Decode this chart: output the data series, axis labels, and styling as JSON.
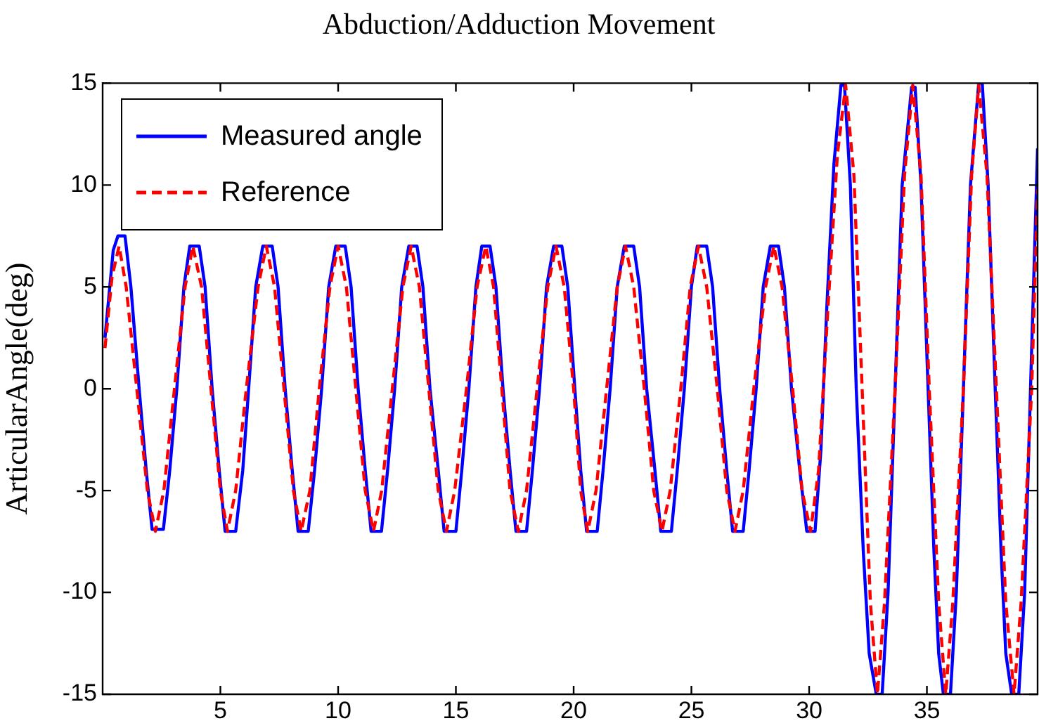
{
  "chart_data": {
    "type": "line",
    "title": "Abduction/Adduction Movement",
    "ylabel": "ArticularAngle(deg)",
    "xlim": [
      0,
      39.7
    ],
    "xticks": [
      5,
      10,
      15,
      20,
      25,
      30,
      35
    ],
    "ylim": [
      -15,
      15
    ],
    "yticks": [
      -15,
      -10,
      -5,
      0,
      5,
      10,
      15
    ],
    "grid": false,
    "legend": "top left",
    "marker": "none",
    "series": [
      {
        "name": "Measured angle",
        "color": "#0000ff",
        "line_style": "solid",
        "x": [
          0.1,
          0.45,
          0.65,
          0.95,
          1.2,
          1.55,
          1.85,
          2.1,
          2.58,
          2.85,
          3.15,
          3.45,
          3.7,
          4.1,
          4.35,
          4.65,
          4.95,
          5.2,
          5.65,
          5.95,
          6.2,
          6.5,
          6.8,
          7.2,
          7.45,
          7.75,
          8.05,
          8.3,
          8.73,
          9.0,
          9.3,
          9.6,
          9.9,
          10.3,
          10.55,
          10.85,
          11.15,
          11.4,
          11.84,
          12.1,
          12.4,
          12.7,
          13.0,
          13.35,
          13.6,
          13.9,
          14.25,
          14.5,
          15.0,
          15.25,
          15.55,
          15.85,
          16.1,
          16.45,
          16.7,
          17.0,
          17.3,
          17.55,
          18.0,
          18.25,
          18.55,
          18.85,
          19.15,
          19.5,
          19.75,
          20.05,
          20.3,
          20.55,
          21.0,
          21.25,
          21.55,
          21.85,
          22.15,
          22.55,
          22.8,
          23.1,
          23.45,
          23.7,
          24.15,
          24.4,
          24.7,
          25.0,
          25.25,
          25.65,
          25.9,
          26.2,
          26.5,
          26.75,
          27.2,
          27.45,
          27.75,
          28.05,
          28.35,
          28.7,
          28.95,
          29.25,
          29.6,
          29.9,
          30.25,
          30.5,
          30.75,
          31.05,
          31.35,
          31.5,
          31.75,
          32.0,
          32.3,
          32.55,
          32.85,
          33.1,
          33.35,
          33.65,
          33.95,
          34.35,
          34.5,
          34.75,
          35.05,
          35.3,
          35.5,
          35.7,
          36.0,
          36.25,
          36.55,
          36.85,
          37.2,
          37.35,
          37.6,
          37.9,
          38.15,
          38.35,
          38.6,
          38.9,
          39.15,
          39.45,
          39.7
        ],
        "values": [
          2.5,
          6.8,
          7.5,
          7.5,
          5,
          0,
          -4,
          -6.9,
          -6.9,
          -4,
          0,
          5,
          7,
          7,
          5,
          0,
          -4,
          -7,
          -7,
          -4,
          0,
          5,
          7,
          7,
          5,
          0,
          -4,
          -7,
          -7,
          -4,
          0,
          5,
          7,
          7,
          5,
          0,
          -4,
          -7,
          -7,
          -4,
          0,
          5,
          7,
          7,
          5,
          0,
          -4,
          -7,
          -7,
          -4,
          0,
          5,
          7,
          7,
          5,
          0,
          -4,
          -7,
          -7,
          -4,
          0,
          5,
          7,
          7,
          5,
          0,
          -4,
          -7,
          -7,
          -4,
          0,
          5,
          7,
          7,
          5,
          0,
          -4,
          -7,
          -7,
          -4,
          0,
          5,
          7,
          7,
          5,
          0,
          -4,
          -7,
          -7,
          -4,
          0,
          5,
          7,
          7,
          5,
          0,
          -4,
          -7,
          -7,
          -3,
          4,
          11,
          14.9,
          14.9,
          10,
          0,
          -8,
          -13,
          -15,
          -15,
          -10,
          0,
          10,
          14.8,
          14.8,
          10,
          0,
          -8,
          -13,
          -15,
          -15,
          -10,
          0,
          10,
          15,
          15,
          10,
          0,
          -8,
          -13,
          -15,
          -15,
          -10,
          2,
          11.8
        ]
      },
      {
        "name": "Reference",
        "color": "#ff0000",
        "line_style": "dashed",
        "x": [
          0.1,
          0.4,
          0.7,
          1.0,
          1.45,
          1.9,
          2.24,
          2.6,
          3.05,
          3.5,
          3.83,
          4.2,
          4.6,
          5.0,
          5.3,
          5.65,
          6.1,
          6.6,
          6.95,
          7.3,
          7.7,
          8.1,
          8.43,
          8.8,
          9.2,
          9.65,
          10.0,
          10.35,
          10.75,
          11.15,
          11.5,
          11.85,
          12.3,
          12.75,
          13.1,
          13.45,
          13.85,
          14.25,
          14.6,
          14.95,
          15.45,
          15.9,
          16.27,
          16.6,
          16.95,
          17.3,
          17.65,
          18.0,
          18.45,
          18.9,
          19.25,
          19.6,
          20.0,
          20.3,
          20.6,
          20.95,
          21.4,
          21.85,
          22.2,
          22.55,
          23.0,
          23.4,
          23.75,
          24.1,
          24.55,
          24.95,
          25.3,
          25.65,
          26.1,
          26.5,
          26.85,
          27.2,
          27.65,
          28.15,
          28.5,
          28.85,
          29.3,
          29.7,
          30.06,
          30.4,
          30.8,
          31.2,
          31.55,
          31.9,
          32.25,
          32.6,
          32.9,
          33.2,
          33.65,
          34.05,
          34.4,
          34.75,
          35.1,
          35.5,
          35.8,
          36.1,
          36.55,
          36.9,
          37.2,
          37.55,
          37.95,
          38.35,
          38.7,
          39.0,
          39.45,
          39.7
        ],
        "values": [
          2.0,
          5.5,
          7,
          5,
          0,
          -5,
          -7,
          -5,
          0,
          5,
          7,
          5,
          0,
          -5,
          -7,
          -5,
          0,
          5,
          7,
          5,
          0,
          -5,
          -7,
          -5,
          0,
          5,
          7,
          5,
          0,
          -5,
          -7,
          -5,
          0,
          5,
          7,
          5,
          0,
          -5,
          -7,
          -5,
          0,
          5,
          7,
          5,
          0,
          -5,
          -7,
          -5,
          0,
          5,
          7,
          5,
          0,
          -5,
          -7,
          -5,
          0,
          5,
          7,
          5,
          0,
          -5,
          -7,
          -5,
          0,
          5,
          7,
          5,
          0,
          -5,
          -7,
          -5,
          0,
          5,
          7,
          5,
          0,
          -5,
          -7,
          -4,
          4,
          11.5,
          14.9,
          10.5,
          0,
          -10.5,
          -15,
          -10.5,
          0,
          10.5,
          14.9,
          10.5,
          0,
          -10.5,
          -15,
          -10.5,
          0,
          10.5,
          14.9,
          10.5,
          0,
          -10.5,
          -15,
          -10.5,
          0,
          9.8
        ]
      }
    ]
  }
}
